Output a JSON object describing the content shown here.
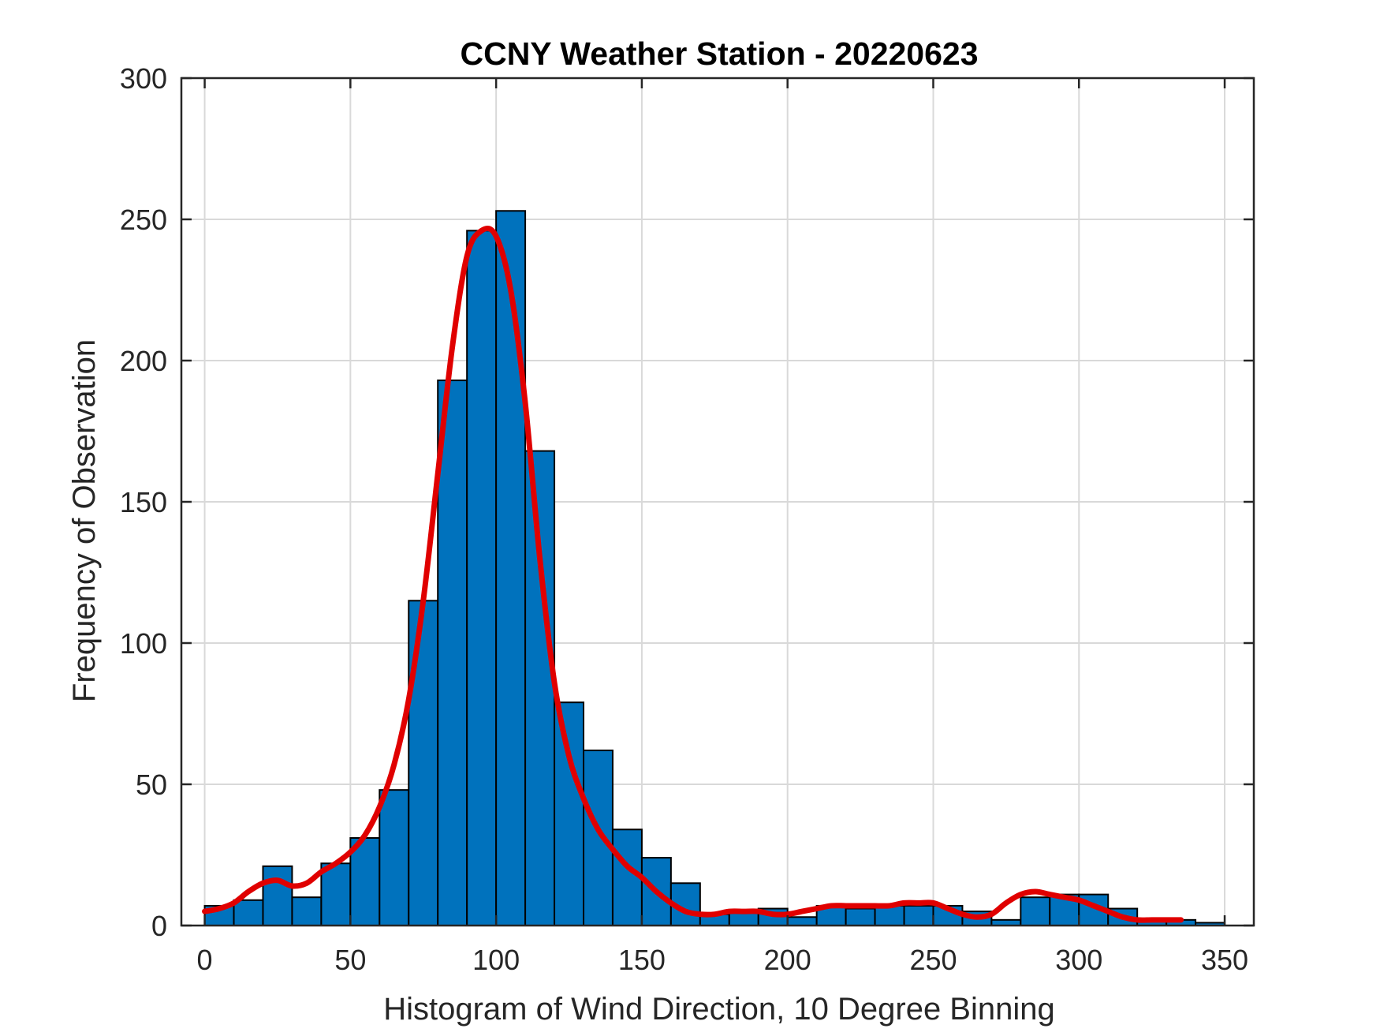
{
  "chart_data": {
    "type": "bar",
    "title": "CCNY Weather Station - 20220623",
    "xlabel": "Histogram of Wind Direction, 10 Degree Binning",
    "ylabel": "Frequency of Observation",
    "xlim": [
      -8,
      360
    ],
    "ylim": [
      0,
      300
    ],
    "xticks": [
      0,
      50,
      100,
      150,
      200,
      250,
      300,
      350
    ],
    "yticks": [
      0,
      50,
      100,
      150,
      200,
      250,
      300
    ],
    "grid": true,
    "bin_width": 10,
    "bin_starts": [
      0,
      10,
      20,
      30,
      40,
      50,
      60,
      70,
      80,
      90,
      100,
      110,
      120,
      130,
      140,
      150,
      160,
      170,
      180,
      190,
      200,
      210,
      220,
      230,
      240,
      250,
      260,
      270,
      280,
      290,
      300,
      310,
      320,
      330,
      340
    ],
    "series": [
      {
        "type": "bar",
        "values": [
          7,
          9,
          21,
          10,
          22,
          31,
          48,
          115,
          193,
          246,
          253,
          168,
          79,
          62,
          34,
          24,
          15,
          4,
          5,
          6,
          3,
          7,
          6,
          7,
          7,
          7,
          5,
          2,
          10,
          11,
          11,
          6,
          2,
          2,
          1
        ],
        "color": "#0072BD"
      },
      {
        "type": "line",
        "x": [
          0,
          5,
          10,
          15,
          20,
          25,
          30,
          35,
          40,
          45,
          50,
          55,
          60,
          65,
          70,
          75,
          80,
          85,
          90,
          95,
          100,
          105,
          110,
          115,
          120,
          125,
          130,
          135,
          140,
          145,
          150,
          155,
          160,
          165,
          170,
          175,
          180,
          185,
          190,
          195,
          200,
          205,
          210,
          215,
          220,
          225,
          230,
          235,
          240,
          245,
          250,
          255,
          260,
          265,
          270,
          275,
          280,
          285,
          290,
          295,
          300,
          305,
          310,
          315,
          320,
          325,
          330,
          335
        ],
        "values": [
          5,
          6,
          8,
          12,
          15,
          16,
          14,
          15,
          19,
          22,
          26,
          32,
          42,
          57,
          80,
          115,
          160,
          205,
          237,
          246,
          244,
          225,
          185,
          130,
          86,
          60,
          45,
          34,
          27,
          21,
          17,
          12,
          8,
          5,
          4,
          4,
          5,
          5,
          5,
          4,
          4,
          5,
          6,
          7,
          7,
          7,
          7,
          7,
          8,
          8,
          8,
          6,
          4,
          3,
          4,
          8,
          11,
          12,
          11,
          10,
          9,
          7,
          5,
          3,
          2,
          2,
          2,
          2
        ],
        "color": "#E00000"
      }
    ]
  }
}
